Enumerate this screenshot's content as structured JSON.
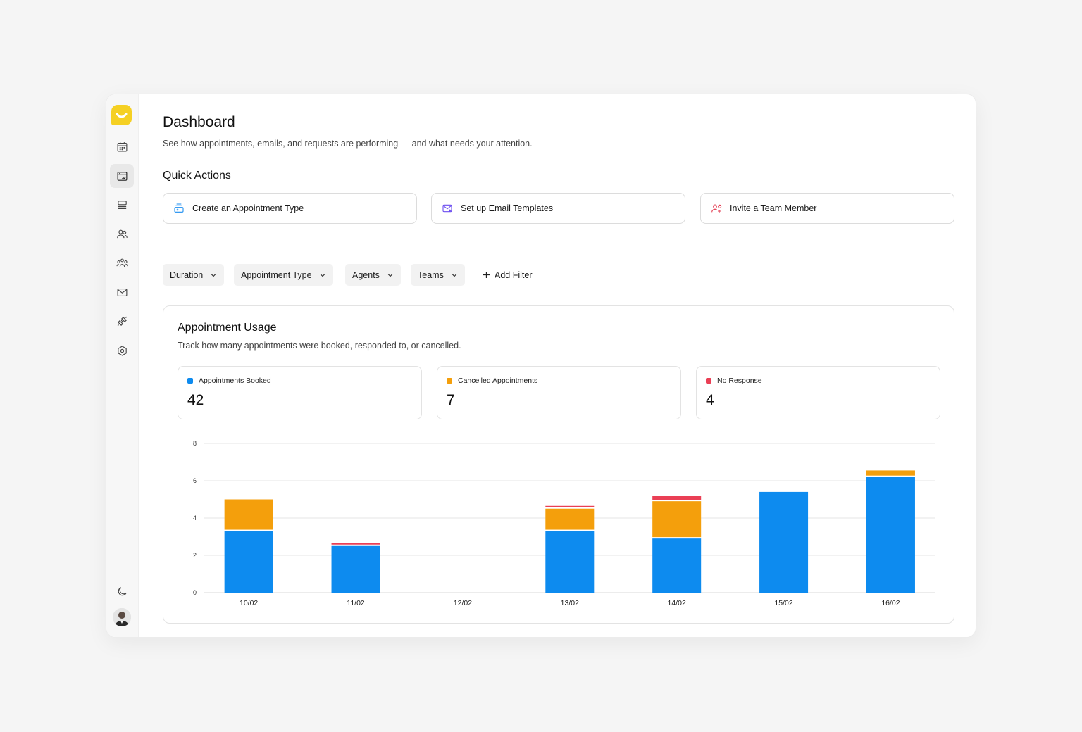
{
  "page": {
    "title": "Dashboard",
    "subtitle": "See how appointments, emails, and requests are performing — and what needs your attention."
  },
  "sidebar": {
    "items": [
      {
        "icon": "calendar-icon",
        "active": false
      },
      {
        "icon": "dashboard-card-icon",
        "active": true
      },
      {
        "icon": "list-icon",
        "active": false
      },
      {
        "icon": "users-icon",
        "active": false
      },
      {
        "icon": "team-icon",
        "active": false
      },
      {
        "icon": "mail-icon",
        "active": false
      },
      {
        "icon": "integrations-icon",
        "active": false
      },
      {
        "icon": "settings-icon",
        "active": false
      }
    ],
    "bottom": [
      {
        "icon": "moon-icon"
      },
      {
        "icon": "avatar"
      }
    ]
  },
  "quick_actions": {
    "title": "Quick Actions",
    "items": [
      {
        "label": "Create an Appointment Type",
        "icon": "appointment-type-icon",
        "color": "#1a8df0"
      },
      {
        "label": "Set up Email Templates",
        "icon": "email-template-icon",
        "color": "#6b4cf0"
      },
      {
        "label": "Invite a Team Member",
        "icon": "invite-user-icon",
        "color": "#e23b50"
      }
    ]
  },
  "filters": {
    "items": [
      {
        "label": "Duration"
      },
      {
        "label": "Appointment Type"
      },
      {
        "label": "Agents"
      },
      {
        "label": "Teams"
      }
    ],
    "add_label": "Add Filter"
  },
  "usage": {
    "title": "Appointment Usage",
    "subtitle": "Track how many appointments were booked, responded to, or cancelled.",
    "stats": [
      {
        "label": "Appointments Booked",
        "value": "42",
        "color": "#0d8bef"
      },
      {
        "label": "Cancelled Appointments",
        "value": "7",
        "color": "#f49f0c"
      },
      {
        "label": "No Response",
        "value": "4",
        "color": "#ea3f55"
      }
    ]
  },
  "chart_data": {
    "type": "bar",
    "stacked": true,
    "categories": [
      "10/02",
      "11/02",
      "12/02",
      "13/02",
      "14/02",
      "15/02",
      "16/02"
    ],
    "ylim": [
      0,
      8
    ],
    "yticks": [
      0,
      2,
      4,
      6,
      8
    ],
    "grid": true,
    "series": [
      {
        "name": "Appointments Booked",
        "color": "#0d8bef",
        "values": [
          3.3,
          2.5,
          0,
          3.3,
          2.9,
          5.4,
          6.2
        ]
      },
      {
        "name": "Cancelled Appointments",
        "color": "#f49f0c",
        "values": [
          1.7,
          0,
          0,
          1.2,
          2.0,
          0,
          0.35
        ]
      },
      {
        "name": "No Response",
        "color": "#ea3f55",
        "values": [
          0,
          0.15,
          0,
          0.15,
          0.3,
          0,
          0
        ]
      }
    ]
  }
}
